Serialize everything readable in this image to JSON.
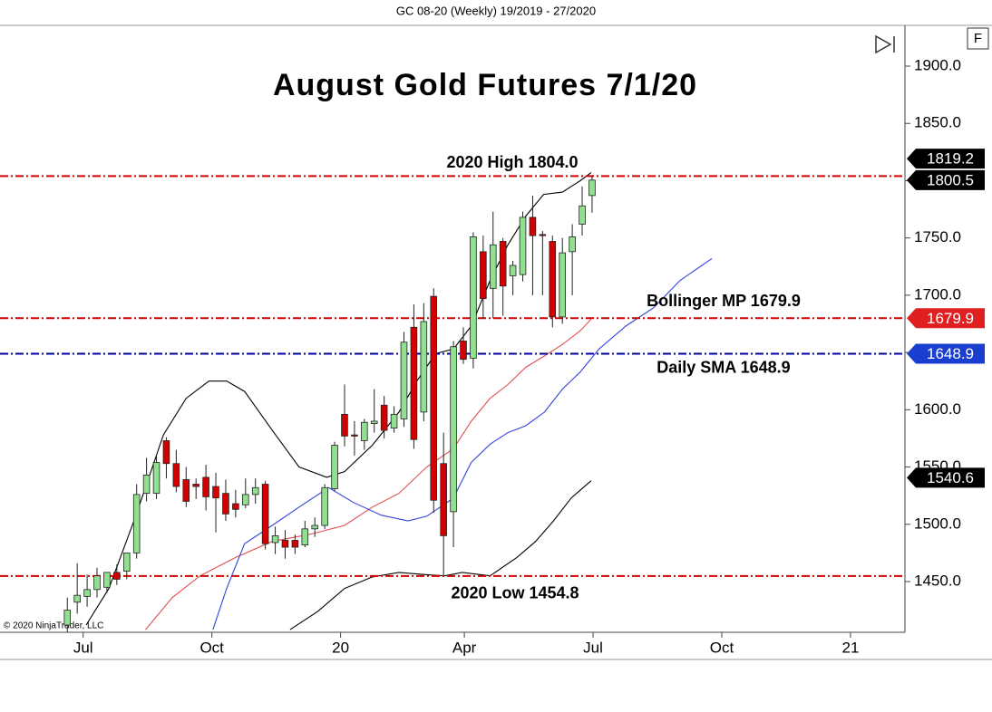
{
  "header": "GC 08-20 (Weekly)  19/2019 - 27/2020",
  "copyright": "© 2020 NinjaTrader, LLC",
  "button_label": "F",
  "chart_data": {
    "type": "candlestick",
    "title": "August Gold Futures 7/1/20",
    "x": [
      0,
      1,
      2,
      3,
      4,
      5,
      6,
      7,
      8,
      9,
      10,
      11,
      12,
      13,
      14,
      15,
      16,
      17,
      18,
      19,
      20,
      21,
      22,
      23,
      24,
      25,
      26,
      27,
      28,
      29,
      30,
      31,
      32,
      33,
      34,
      35,
      36,
      37,
      38,
      39,
      40,
      41,
      42,
      43,
      44,
      45,
      46,
      47,
      48,
      49,
      50,
      51,
      52,
      53
    ],
    "open": [
      1412,
      1432,
      1437,
      1443,
      1445,
      1458,
      1459,
      1475,
      1527,
      1527,
      1573,
      1553,
      1539,
      1535,
      1541,
      1533,
      1527,
      1518,
      1517,
      1526,
      1535,
      1484,
      1486,
      1486,
      1482,
      1496,
      1499,
      1531,
      1596,
      1578,
      1573,
      1588,
      1604,
      1584,
      1592,
      1672,
      1598,
      1699,
      1553,
      1511,
      1660,
      1645,
      1738,
      1706,
      1747,
      1717,
      1718,
      1768,
      1753,
      1747,
      1681,
      1738,
      1762,
      1787
    ],
    "high": [
      1436,
      1466,
      1456,
      1462,
      1458,
      1465,
      1470,
      1535,
      1558,
      1560,
      1576,
      1565,
      1550,
      1540,
      1552,
      1545,
      1539,
      1530,
      1540,
      1540,
      1538,
      1498,
      1495,
      1491,
      1503,
      1506,
      1535,
      1572,
      1622,
      1590,
      1592,
      1618,
      1612,
      1603,
      1668,
      1692,
      1693,
      1706,
      1580,
      1660,
      1672,
      1755,
      1752,
      1773,
      1750,
      1730,
      1773,
      1787,
      1756,
      1752,
      1750,
      1762,
      1795,
      1804.0
    ],
    "low": [
      1406,
      1422,
      1428,
      1436,
      1440,
      1447,
      1452,
      1470,
      1520,
      1522,
      1540,
      1528,
      1515,
      1522,
      1512,
      1493,
      1503,
      1506,
      1514,
      1518,
      1478,
      1474,
      1470,
      1474,
      1480,
      1489,
      1496,
      1529,
      1568,
      1560,
      1565,
      1580,
      1575,
      1580,
      1585,
      1566,
      1590,
      1510,
      1454.8,
      1480,
      1640,
      1636,
      1680,
      1680,
      1682,
      1700,
      1712,
      1700,
      1700,
      1672,
      1675,
      1700,
      1752,
      1772
    ],
    "close": [
      1425,
      1438,
      1443,
      1455,
      1458,
      1452,
      1475,
      1526,
      1543,
      1554,
      1553,
      1533,
      1520,
      1533,
      1524,
      1523,
      1509,
      1513,
      1526,
      1532,
      1483,
      1490,
      1480,
      1480,
      1496,
      1499,
      1532,
      1569,
      1577,
      1577,
      1589,
      1590,
      1582,
      1596,
      1659,
      1574,
      1677,
      1521,
      1490,
      1655,
      1644,
      1751,
      1697,
      1744,
      1708,
      1726,
      1768,
      1752,
      1752,
      1681,
      1737,
      1751,
      1778,
      1800.5
    ],
    "up_color": "#90e090",
    "down_color": "#d40000",
    "lines": [
      {
        "color": "#000000",
        "x": [
          1.9,
          4.2,
          6.9,
          9.7,
          12.0,
          14.3,
          16.1,
          17.9,
          20.7,
          23.4,
          26.2,
          28.0,
          30.8,
          33.5,
          35.3,
          37.2,
          39.0,
          40.8,
          42.7,
          44.5,
          46.3,
          48.1,
          50.0,
          51.8,
          52.9
        ],
        "values": [
          1412,
          1444,
          1507,
          1578,
          1610,
          1625,
          1625,
          1616,
          1582,
          1550,
          1541,
          1546,
          1569,
          1598,
          1625,
          1649,
          1653,
          1673,
          1713,
          1744,
          1769,
          1788,
          1790,
          1800,
          1807
        ]
      },
      {
        "color": "#000000",
        "x": [
          22.5,
          25.3,
          28.0,
          30.8,
          33.5,
          36.3,
          38.1,
          39.9,
          42.7,
          45.4,
          47.3,
          49.1,
          50.9,
          52.9
        ],
        "values": [
          1408,
          1424,
          1444,
          1454,
          1458,
          1456,
          1455,
          1458,
          1455,
          1471,
          1485,
          1503,
          1523,
          1538
        ]
      },
      {
        "color": "#e05050",
        "x": [
          7.9,
          10.6,
          13.4,
          17.0,
          20.7,
          24.4,
          28.0,
          30.8,
          33.5,
          36.3,
          39.0,
          40.8,
          42.7,
          44.5,
          46.3,
          48.2,
          50.0,
          51.8,
          52.9
        ],
        "values": [
          1408,
          1436,
          1455,
          1471,
          1485,
          1491,
          1499,
          1515,
          1527,
          1550,
          1566,
          1590,
          1610,
          1622,
          1637,
          1647,
          1657,
          1669,
          1679
        ]
      },
      {
        "color": "#3344dd",
        "x": [
          14.7,
          16.1,
          17.9,
          20.7,
          23.4,
          26.4,
          28.9,
          31.7,
          34.4,
          36.3,
          39.0,
          40.8,
          42.7,
          44.5,
          46.3,
          48.2,
          50.0,
          51.8,
          53.7,
          56.4,
          59.2,
          61.9,
          65.1
        ],
        "values": [
          1408,
          1444,
          1483,
          1499,
          1515,
          1532,
          1519,
          1508,
          1503,
          1507,
          1523,
          1554,
          1570,
          1580,
          1586,
          1598,
          1618,
          1633,
          1653,
          1673,
          1689,
          1713,
          1732
        ]
      }
    ],
    "levels": [
      {
        "value": 1804.0,
        "label": "2020 High 1804.0",
        "color": "#d40000"
      },
      {
        "value": 1679.9,
        "label": "Bollinger MP 1679.9",
        "color": "#d40000"
      },
      {
        "value": 1648.9,
        "label": "Daily SMA 1648.9",
        "color": "#0000a0"
      },
      {
        "value": 1454.8,
        "label": "2020 Low 1454.8",
        "color": "#d40000"
      }
    ],
    "price_markers": [
      {
        "value": 1819.2,
        "color": "#000000"
      },
      {
        "value": 1800.5,
        "color": "#000000"
      },
      {
        "value": 1679.9,
        "color": "#e02020"
      },
      {
        "value": 1648.9,
        "color": "#1a3fd0"
      },
      {
        "value": 1540.6,
        "color": "#000000"
      }
    ],
    "xlim": [
      -6.8,
      84.6
    ],
    "xticks": [
      {
        "value": 1.6,
        "label": "Jul"
      },
      {
        "value": 14.6,
        "label": "Oct"
      },
      {
        "value": 27.6,
        "label": "20"
      },
      {
        "value": 40.1,
        "label": "Apr"
      },
      {
        "value": 53.1,
        "label": "Jul"
      },
      {
        "value": 66.1,
        "label": "Oct"
      },
      {
        "value": 79.1,
        "label": "21"
      }
    ],
    "ylim": [
      1405.7,
      1935.6
    ],
    "yticks": [
      {
        "value": 1450,
        "label": "1450.0"
      },
      {
        "value": 1500,
        "label": "1500.0"
      },
      {
        "value": 1550,
        "label": "1550.0"
      },
      {
        "value": 1600,
        "label": "1600.0"
      },
      {
        "value": 1650,
        "label": "1650.0"
      },
      {
        "value": 1700,
        "label": "1700.0"
      },
      {
        "value": 1750,
        "label": "1750.0"
      },
      {
        "value": 1800,
        "label": "1800.0"
      },
      {
        "value": 1850,
        "label": "1850.0"
      },
      {
        "value": 1900,
        "label": "1900.0"
      }
    ]
  }
}
